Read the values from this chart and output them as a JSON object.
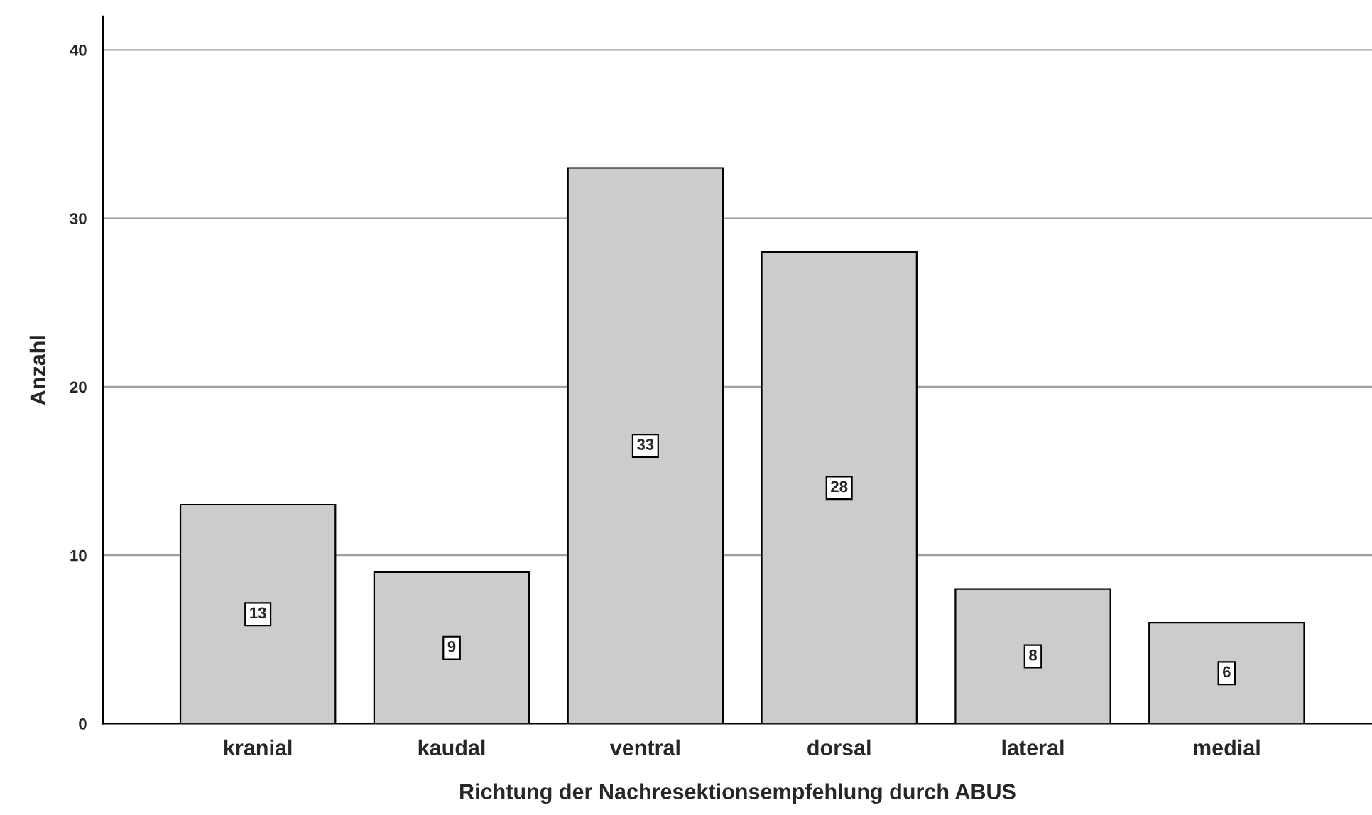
{
  "chart_data": {
    "type": "bar",
    "xlabel": "Richtung der Nachresektionsempfehlung durch ABUS",
    "ylabel": "Anzahl",
    "categories": [
      "kranial",
      "kaudal",
      "ventral",
      "dorsal",
      "lateral",
      "medial"
    ],
    "values": [
      13,
      9,
      33,
      28,
      8,
      6
    ],
    "color": "#cccccc",
    "ylim": [
      0,
      42
    ],
    "yticks": [
      0,
      10,
      20,
      30,
      40
    ],
    "grid": "y",
    "data_labels": true
  }
}
